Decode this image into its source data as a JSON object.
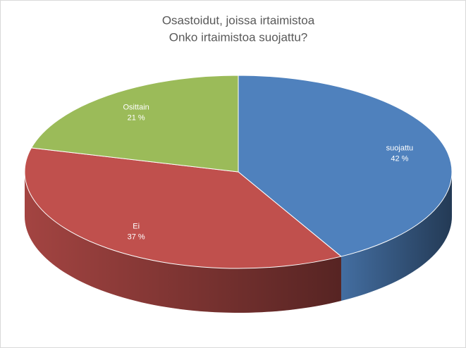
{
  "chart_data": {
    "type": "pie3d",
    "title": "Osastoidut, joissa irtaimistoa",
    "subtitle": "Onko irtaimistoa suojattu?",
    "categories": [
      "suojattu",
      "Ei",
      "Osittain"
    ],
    "values": [
      42,
      37,
      21
    ],
    "value_labels": [
      "42 %",
      "37 %",
      "21 %"
    ],
    "colors": [
      "#4f81bd",
      "#c0504d",
      "#9bbb59"
    ]
  }
}
